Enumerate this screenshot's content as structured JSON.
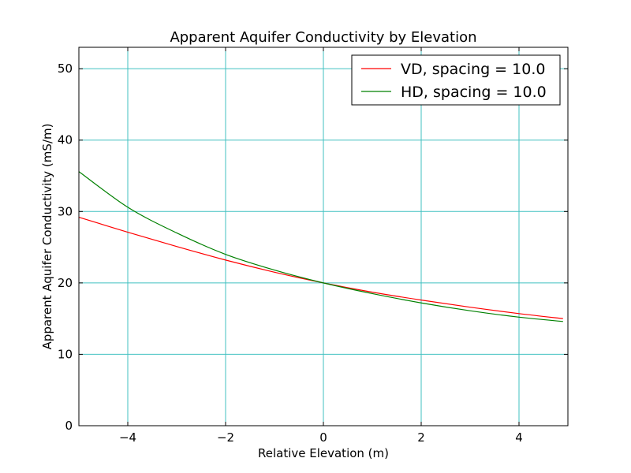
{
  "chart_data": {
    "type": "line",
    "title": "Apparent Aquifer Conductivity by Elevation",
    "xlabel": "Relative Elevation (m)",
    "ylabel": "Apparent Aquifer Conductivity (mS/m)",
    "xlim": [
      -5,
      5
    ],
    "ylim": [
      0,
      53
    ],
    "xticks": [
      -4,
      -2,
      0,
      2,
      4
    ],
    "xtick_labels": [
      "−4",
      "−2",
      "0",
      "2",
      "4"
    ],
    "yticks": [
      0,
      10,
      20,
      30,
      40,
      50
    ],
    "ytick_labels": [
      "0",
      "10",
      "20",
      "30",
      "40",
      "50"
    ],
    "grid": true,
    "grid_color": "#40c0c0",
    "legend_position": "top-right",
    "series": [
      {
        "name": "VD, spacing = 10.0",
        "color": "#ff0000",
        "x": [
          -5,
          -4,
          -3,
          -2,
          -1,
          0,
          1,
          2,
          3,
          4,
          4.9
        ],
        "y": [
          29.2,
          27.1,
          25.1,
          23.2,
          21.5,
          20.0,
          18.7,
          17.6,
          16.6,
          15.7,
          15.0
        ]
      },
      {
        "name": "HD, spacing = 10.0",
        "color": "#008000",
        "x": [
          -5,
          -4,
          -3,
          -2,
          -1,
          0,
          1,
          2,
          3,
          4,
          4.9
        ],
        "y": [
          35.6,
          30.6,
          27.0,
          24.0,
          21.8,
          20.0,
          18.5,
          17.2,
          16.1,
          15.2,
          14.6
        ]
      }
    ]
  }
}
